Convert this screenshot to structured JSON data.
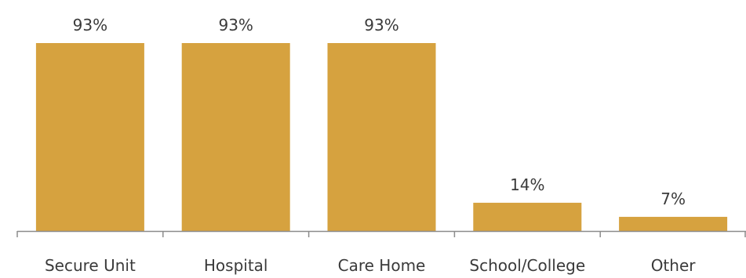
{
  "chart_data": {
    "type": "bar",
    "categories": [
      "Secure Unit",
      "Hospital",
      "Care Home",
      "School/College",
      "Other"
    ],
    "values": [
      93,
      93,
      93,
      14,
      7
    ],
    "data_labels": [
      "93%",
      "93%",
      "93%",
      "14%",
      "7%"
    ],
    "title": "",
    "xlabel": "",
    "ylabel": "",
    "ylim": [
      0,
      100
    ],
    "grid": false,
    "legend": "none",
    "bar_color": "#d6a23f",
    "axis_color": "#8c8c8c",
    "text_color": "#3a3a3a"
  }
}
